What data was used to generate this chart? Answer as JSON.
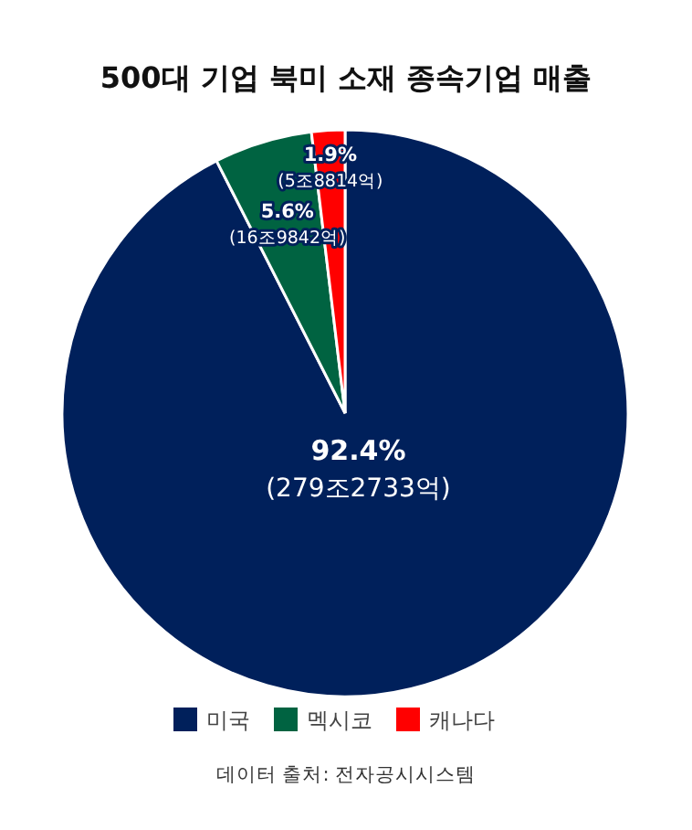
{
  "chart_data": {
    "type": "pie",
    "title": "500대 기업 북미 소재 종속기업 매출",
    "categories": [
      "미국",
      "멕시코",
      "캐나다"
    ],
    "values": [
      92.4,
      5.6,
      1.9
    ],
    "colors": [
      "#00205b",
      "#006341",
      "#ff0000"
    ],
    "value_labels": [
      "92.4%\n(279조2733억)",
      "5.6%\n(16조9842억)",
      "1.9%\n(5조8814억)"
    ],
    "legend": "bottom",
    "annotations": [
      "데이터 출처: 전자공시시스템"
    ]
  }
}
